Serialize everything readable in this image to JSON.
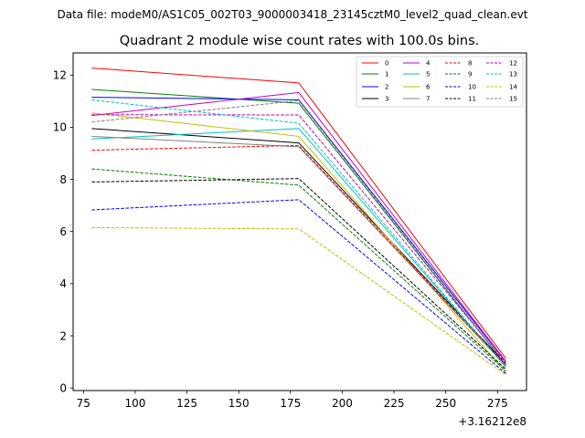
{
  "figure": {
    "suptitle": "Data file: modeM0/AS1C05_002T03_9000003418_23145cztM0_level2_quad_clean.evt",
    "axis_offset_label": "+3.16212e8"
  },
  "chart_data": {
    "type": "line",
    "title": "Quadrant 2 module wise count rates with 100.0s bins.",
    "xlabel": "",
    "ylabel": "",
    "x": [
      79,
      179,
      279
    ],
    "xlim": [
      70,
      289
    ],
    "ylim": [
      -0.1,
      12.85
    ],
    "xticks": [
      75,
      100,
      125,
      150,
      175,
      200,
      225,
      250,
      275
    ],
    "yticks": [
      0,
      2,
      4,
      6,
      8,
      10,
      12
    ],
    "grid": false,
    "legend": {
      "position": "top-right",
      "columns": 4
    },
    "series": [
      {
        "name": "0",
        "color": "#ff0000",
        "style": "solid",
        "values": [
          12.27,
          11.7,
          1.13
        ]
      },
      {
        "name": "1",
        "color": "#008000",
        "style": "solid",
        "values": [
          11.45,
          10.92,
          0.88
        ]
      },
      {
        "name": "2",
        "color": "#0000ff",
        "style": "solid",
        "values": [
          11.15,
          11.05,
          1.0
        ]
      },
      {
        "name": "3",
        "color": "#000000",
        "style": "solid",
        "values": [
          9.95,
          9.4,
          0.92
        ]
      },
      {
        "name": "4",
        "color": "#bf00bf",
        "style": "solid",
        "values": [
          10.45,
          11.33,
          1.02
        ]
      },
      {
        "name": "5",
        "color": "#00bfbf",
        "style": "solid",
        "values": [
          9.55,
          9.95,
          0.8
        ]
      },
      {
        "name": "6",
        "color": "#bfbf00",
        "style": "solid",
        "values": [
          10.55,
          9.65,
          0.6
        ]
      },
      {
        "name": "7",
        "color": "#808080",
        "style": "solid",
        "values": [
          9.65,
          9.25,
          0.85
        ]
      },
      {
        "name": "8",
        "color": "#ff0000",
        "style": "dashed",
        "values": [
          9.12,
          9.3,
          0.88
        ]
      },
      {
        "name": "9",
        "color": "#008000",
        "style": "dashed",
        "values": [
          8.4,
          7.78,
          0.65
        ]
      },
      {
        "name": "10",
        "color": "#0000ff",
        "style": "dashed",
        "values": [
          6.83,
          7.22,
          0.55
        ]
      },
      {
        "name": "11",
        "color": "#000000",
        "style": "dashed",
        "values": [
          7.9,
          8.03,
          0.72
        ]
      },
      {
        "name": "12",
        "color": "#bf00bf",
        "style": "dashed",
        "values": [
          10.48,
          10.47,
          0.95
        ]
      },
      {
        "name": "13",
        "color": "#00bfbf",
        "style": "dashed",
        "values": [
          11.05,
          10.15,
          0.8
        ]
      },
      {
        "name": "14",
        "color": "#bfbf00",
        "style": "dashed",
        "values": [
          6.15,
          6.1,
          0.5
        ]
      },
      {
        "name": "15",
        "color": "#808080",
        "style": "dashed",
        "values": [
          10.2,
          11.02,
          0.9
        ]
      }
    ]
  }
}
